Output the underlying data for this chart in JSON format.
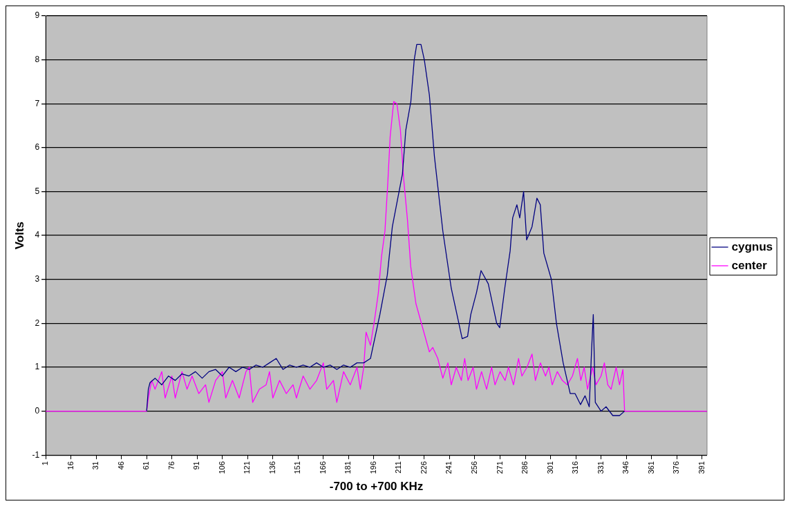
{
  "chart_data": {
    "type": "line",
    "xlabel": "-700 to +700 KHz",
    "ylabel": "Volts",
    "xlim": [
      1,
      394
    ],
    "xticks": [
      1,
      16,
      31,
      46,
      61,
      76,
      91,
      106,
      121,
      136,
      151,
      166,
      181,
      196,
      211,
      226,
      241,
      256,
      271,
      286,
      301,
      316,
      331,
      346,
      361,
      376,
      391
    ],
    "ylim": [
      -1,
      9
    ],
    "yticks": [
      -1,
      0,
      1,
      2,
      3,
      4,
      5,
      6,
      7,
      8,
      9
    ],
    "grid": "y",
    "legend": "right",
    "marker": "none",
    "line_style": "solid",
    "series": [
      {
        "name": "cygnus",
        "color": "#000080",
        "x": [
          61,
          62,
          63,
          66,
          70,
          74,
          78,
          82,
          86,
          90,
          94,
          98,
          102,
          106,
          110,
          114,
          118,
          122,
          126,
          130,
          134,
          138,
          142,
          146,
          150,
          154,
          158,
          162,
          166,
          170,
          174,
          178,
          182,
          186,
          190,
          194,
          199.6,
          204,
          207,
          210,
          213,
          214,
          215,
          218,
          220,
          221.5,
          224,
          226,
          229,
          232,
          237,
          242,
          248.5,
          251.7,
          253.6,
          257,
          259.7,
          264,
          269,
          270.8,
          273.8,
          277,
          278.5,
          281,
          282.7,
          285,
          286.8,
          290,
          292.9,
          294.9,
          297,
          301.5,
          304.5,
          308.5,
          312.7,
          315.6,
          318.8,
          321.5,
          324,
          325.4,
          326.4,
          327.6,
          331,
          334,
          338,
          342,
          345
        ],
        "values": [
          0,
          0.5,
          0.65,
          0.75,
          0.6,
          0.8,
          0.7,
          0.85,
          0.8,
          0.9,
          0.75,
          0.9,
          0.95,
          0.8,
          1.0,
          0.9,
          1.0,
          0.95,
          1.05,
          1.0,
          1.1,
          1.2,
          0.95,
          1.05,
          1.0,
          1.05,
          1.0,
          1.1,
          1.0,
          1.05,
          0.95,
          1.05,
          1.0,
          1.1,
          1.1,
          1.2,
          2.2,
          3.1,
          4.2,
          4.8,
          5.4,
          5.9,
          6.4,
          7.05,
          8.0,
          8.35,
          8.35,
          8.0,
          7.2,
          5.8,
          4.1,
          2.8,
          1.65,
          1.7,
          2.2,
          2.7,
          3.2,
          2.9,
          2.0,
          1.9,
          2.8,
          3.65,
          4.4,
          4.7,
          4.4,
          5.0,
          3.9,
          4.2,
          4.85,
          4.7,
          3.6,
          3.0,
          2.0,
          1.1,
          0.4,
          0.4,
          0.15,
          0.35,
          0.1,
          1.4,
          2.2,
          0.2,
          0.0,
          0.1,
          -0.1,
          -0.1,
          0
        ]
      },
      {
        "name": "center",
        "color": "#ff00ff",
        "x": [
          1,
          61,
          62,
          64,
          66,
          70,
          72,
          76,
          78,
          82,
          85,
          88,
          92,
          96,
          98,
          102,
          106,
          108,
          112,
          116,
          120,
          122,
          124,
          128,
          132,
          134,
          136,
          140,
          144,
          148,
          150,
          154,
          158,
          162,
          166,
          168,
          172,
          174,
          178,
          182,
          186,
          188,
          190,
          191.4,
          194,
          196.5,
          198.7,
          200.5,
          202.6,
          204.3,
          205.7,
          207.8,
          209.7,
          211.8,
          213.7,
          216,
          217.9,
          221,
          225,
          229,
          231,
          234,
          237,
          240,
          242,
          245,
          248,
          250,
          252,
          255,
          257,
          260,
          263,
          266,
          268,
          271,
          274,
          276,
          279,
          282,
          284,
          287,
          290,
          292,
          295,
          298,
          300,
          302,
          305,
          308,
          311,
          314,
          317,
          319,
          321,
          323,
          326,
          328,
          331,
          333,
          335,
          337,
          340,
          342,
          344,
          345,
          394
        ],
        "values": [
          0,
          0,
          0.3,
          0.7,
          0.5,
          0.9,
          0.3,
          0.8,
          0.3,
          0.9,
          0.5,
          0.8,
          0.4,
          0.6,
          0.2,
          0.7,
          0.9,
          0.3,
          0.7,
          0.3,
          0.9,
          1.0,
          0.2,
          0.5,
          0.6,
          0.9,
          0.3,
          0.7,
          0.4,
          0.6,
          0.3,
          0.8,
          0.5,
          0.7,
          1.1,
          0.5,
          0.7,
          0.2,
          0.9,
          0.6,
          1.0,
          0.5,
          1.0,
          1.8,
          1.5,
          2.1,
          2.7,
          3.5,
          4.1,
          5.2,
          6.25,
          7.05,
          7.0,
          6.4,
          5.3,
          4.35,
          3.3,
          2.45,
          1.9,
          1.35,
          1.45,
          1.2,
          0.75,
          1.1,
          0.6,
          1.0,
          0.7,
          1.2,
          0.7,
          1.0,
          0.5,
          0.9,
          0.5,
          1.0,
          0.6,
          0.9,
          0.7,
          1.0,
          0.6,
          1.2,
          0.8,
          1.0,
          1.3,
          0.7,
          1.1,
          0.8,
          1.0,
          0.6,
          0.9,
          0.7,
          0.6,
          0.8,
          1.2,
          0.7,
          1.0,
          0.5,
          1.0,
          0.6,
          0.8,
          1.1,
          0.6,
          0.5,
          1.0,
          0.6,
          0.95,
          0,
          0
        ]
      }
    ]
  }
}
